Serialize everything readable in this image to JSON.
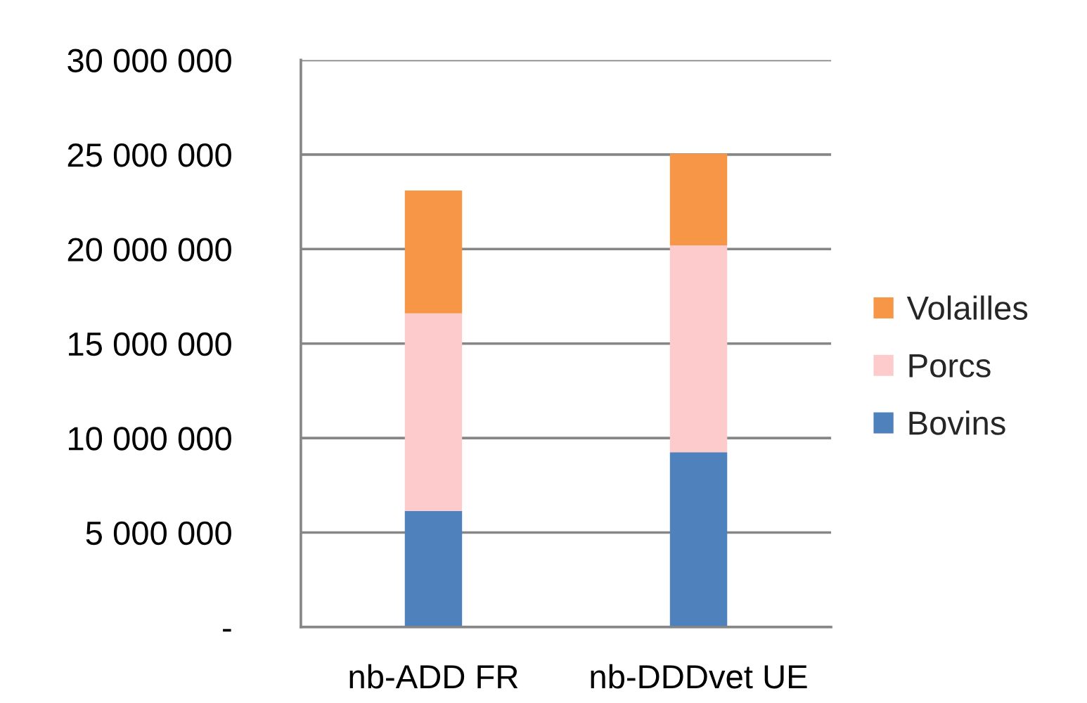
{
  "chart_data": {
    "type": "bar",
    "stacked": true,
    "categories": [
      "nb-ADD FR",
      "nb-DDDvet UE"
    ],
    "series": [
      {
        "name": "Bovins",
        "color": "#4f81bd",
        "values": [
          6150000,
          9250000
        ]
      },
      {
        "name": "Porcs",
        "color": "#fdcbcb",
        "values": [
          10450000,
          10950000
        ]
      },
      {
        "name": "Volailles",
        "color": "#f79646",
        "values": [
          6500000,
          4850000
        ]
      }
    ],
    "ylim": [
      0,
      30000000
    ],
    "yticks": [
      {
        "value": 0,
        "label": "-"
      },
      {
        "value": 5000000,
        "label": "5 000 000"
      },
      {
        "value": 10000000,
        "label": "10 000 000"
      },
      {
        "value": 15000000,
        "label": "15 000 000"
      },
      {
        "value": 20000000,
        "label": "20 000 000"
      },
      {
        "value": 25000000,
        "label": "25 000 000"
      },
      {
        "value": 30000000,
        "label": "30 000 000"
      }
    ],
    "grid": "y",
    "legend": "right"
  }
}
